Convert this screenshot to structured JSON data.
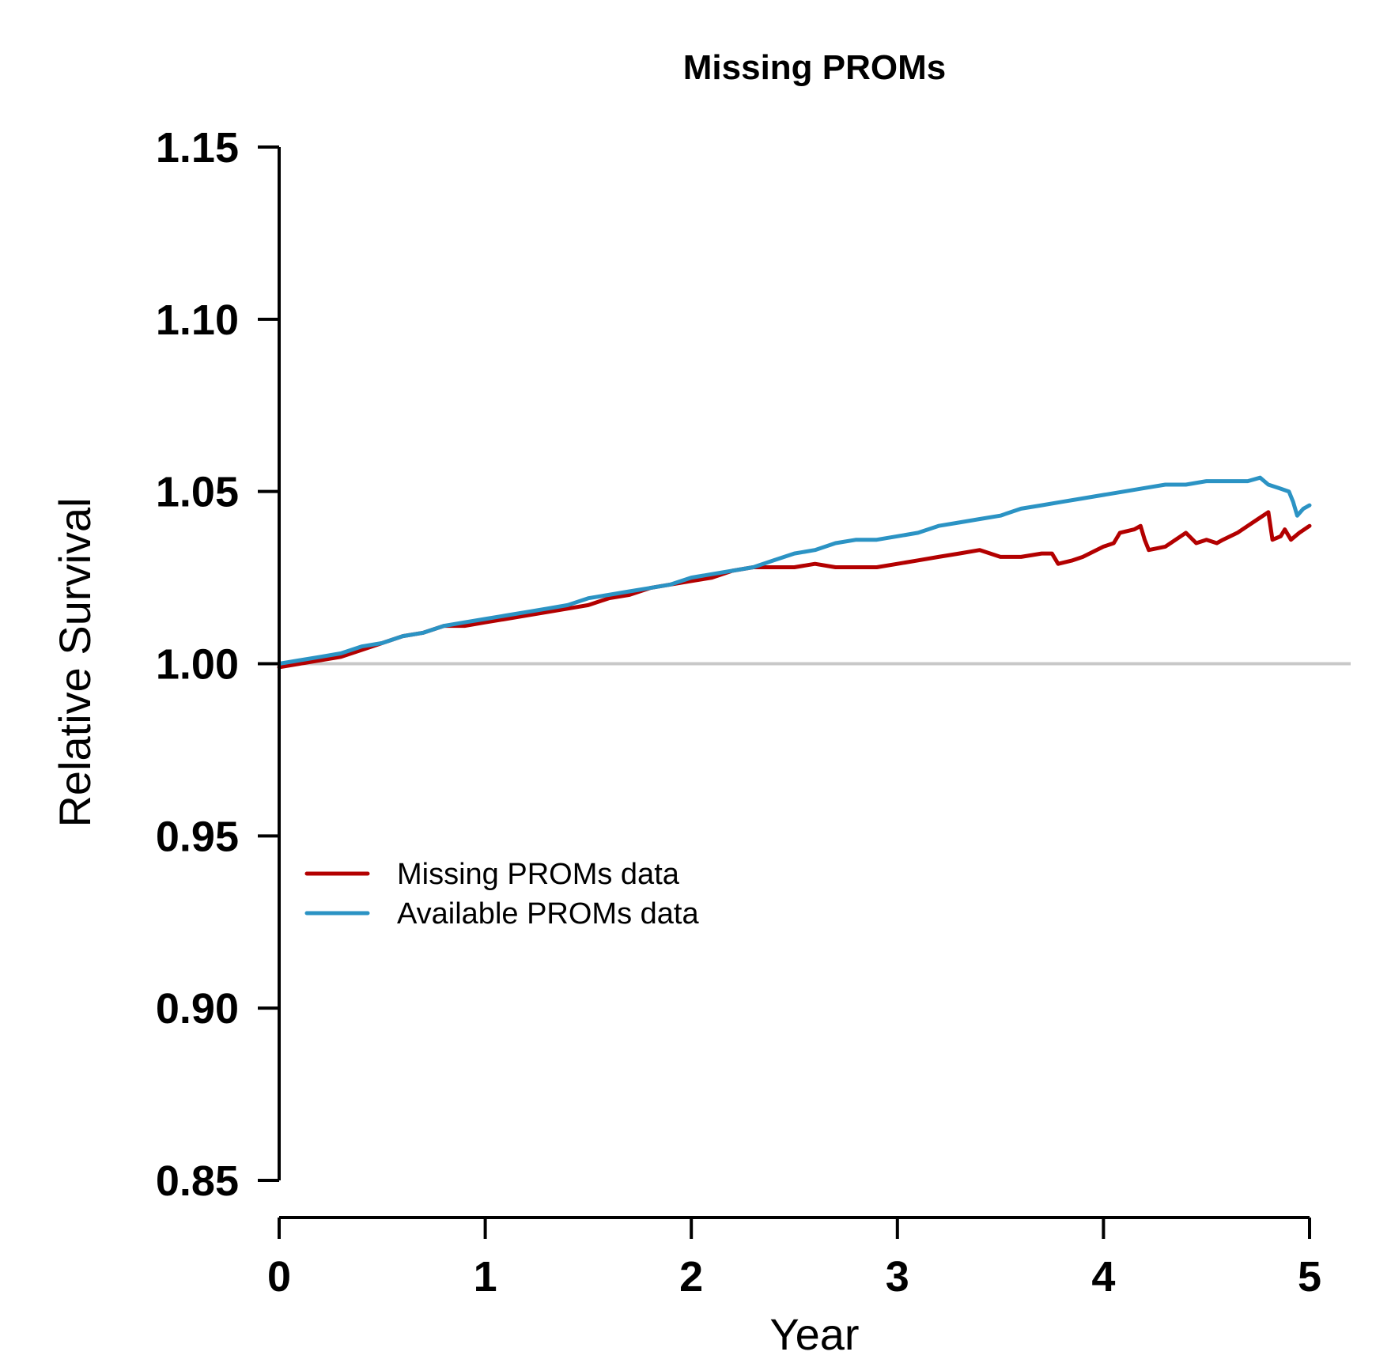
{
  "chart_data": {
    "type": "line",
    "title": "Missing PROMs",
    "xlabel": "Year",
    "ylabel": "Relative Survival",
    "xlim": [
      0,
      5
    ],
    "ylim": [
      0.85,
      1.15
    ],
    "xticks": [
      "0",
      "1",
      "2",
      "3",
      "4",
      "5"
    ],
    "xtick_values": [
      0,
      1,
      2,
      3,
      4,
      5
    ],
    "yticks": [
      "0.85",
      "0.90",
      "0.95",
      "1.00",
      "1.05",
      "1.10",
      "1.15"
    ],
    "ytick_values": [
      0.85,
      0.9,
      0.95,
      1.0,
      1.05,
      1.1,
      1.15
    ],
    "reference_line": {
      "y": 1.0,
      "color": "#c8c8c8"
    },
    "legend_position": "center-left",
    "series": [
      {
        "name": "Missing PROMs data",
        "color": "#b30000",
        "points": [
          [
            0,
            0.999
          ],
          [
            0.1,
            1.0
          ],
          [
            0.2,
            1.001
          ],
          [
            0.3,
            1.002
          ],
          [
            0.4,
            1.004
          ],
          [
            0.5,
            1.006
          ],
          [
            0.6,
            1.008
          ],
          [
            0.7,
            1.009
          ],
          [
            0.8,
            1.011
          ],
          [
            0.9,
            1.011
          ],
          [
            1.0,
            1.012
          ],
          [
            1.1,
            1.013
          ],
          [
            1.2,
            1.014
          ],
          [
            1.3,
            1.015
          ],
          [
            1.4,
            1.016
          ],
          [
            1.5,
            1.017
          ],
          [
            1.6,
            1.019
          ],
          [
            1.7,
            1.02
          ],
          [
            1.8,
            1.022
          ],
          [
            1.9,
            1.023
          ],
          [
            2.0,
            1.024
          ],
          [
            2.1,
            1.025
          ],
          [
            2.2,
            1.027
          ],
          [
            2.3,
            1.028
          ],
          [
            2.4,
            1.028
          ],
          [
            2.5,
            1.028
          ],
          [
            2.6,
            1.029
          ],
          [
            2.7,
            1.028
          ],
          [
            2.8,
            1.028
          ],
          [
            2.9,
            1.028
          ],
          [
            3.0,
            1.029
          ],
          [
            3.1,
            1.03
          ],
          [
            3.2,
            1.031
          ],
          [
            3.3,
            1.032
          ],
          [
            3.4,
            1.033
          ],
          [
            3.5,
            1.031
          ],
          [
            3.6,
            1.031
          ],
          [
            3.7,
            1.032
          ],
          [
            3.75,
            1.032
          ],
          [
            3.78,
            1.029
          ],
          [
            3.85,
            1.03
          ],
          [
            3.9,
            1.031
          ],
          [
            4.0,
            1.034
          ],
          [
            4.05,
            1.035
          ],
          [
            4.08,
            1.038
          ],
          [
            4.15,
            1.039
          ],
          [
            4.18,
            1.04
          ],
          [
            4.2,
            1.036
          ],
          [
            4.22,
            1.033
          ],
          [
            4.3,
            1.034
          ],
          [
            4.35,
            1.036
          ],
          [
            4.4,
            1.038
          ],
          [
            4.45,
            1.035
          ],
          [
            4.5,
            1.036
          ],
          [
            4.55,
            1.035
          ],
          [
            4.58,
            1.036
          ],
          [
            4.65,
            1.038
          ],
          [
            4.7,
            1.04
          ],
          [
            4.75,
            1.042
          ],
          [
            4.8,
            1.044
          ],
          [
            4.82,
            1.036
          ],
          [
            4.86,
            1.037
          ],
          [
            4.88,
            1.039
          ],
          [
            4.91,
            1.036
          ],
          [
            4.95,
            1.038
          ],
          [
            5.0,
            1.04
          ]
        ]
      },
      {
        "name": "Available PROMs data",
        "color": "#2b93c4",
        "points": [
          [
            0,
            1.0
          ],
          [
            0.1,
            1.001
          ],
          [
            0.2,
            1.002
          ],
          [
            0.3,
            1.003
          ],
          [
            0.4,
            1.005
          ],
          [
            0.5,
            1.006
          ],
          [
            0.6,
            1.008
          ],
          [
            0.7,
            1.009
          ],
          [
            0.8,
            1.011
          ],
          [
            0.9,
            1.012
          ],
          [
            1.0,
            1.013
          ],
          [
            1.1,
            1.014
          ],
          [
            1.2,
            1.015
          ],
          [
            1.3,
            1.016
          ],
          [
            1.4,
            1.017
          ],
          [
            1.5,
            1.019
          ],
          [
            1.6,
            1.02
          ],
          [
            1.7,
            1.021
          ],
          [
            1.8,
            1.022
          ],
          [
            1.9,
            1.023
          ],
          [
            2.0,
            1.025
          ],
          [
            2.1,
            1.026
          ],
          [
            2.2,
            1.027
          ],
          [
            2.3,
            1.028
          ],
          [
            2.4,
            1.03
          ],
          [
            2.5,
            1.032
          ],
          [
            2.6,
            1.033
          ],
          [
            2.7,
            1.035
          ],
          [
            2.8,
            1.036
          ],
          [
            2.9,
            1.036
          ],
          [
            3.0,
            1.037
          ],
          [
            3.1,
            1.038
          ],
          [
            3.2,
            1.04
          ],
          [
            3.3,
            1.041
          ],
          [
            3.4,
            1.042
          ],
          [
            3.5,
            1.043
          ],
          [
            3.6,
            1.045
          ],
          [
            3.7,
            1.046
          ],
          [
            3.8,
            1.047
          ],
          [
            3.9,
            1.048
          ],
          [
            4.0,
            1.049
          ],
          [
            4.1,
            1.05
          ],
          [
            4.2,
            1.051
          ],
          [
            4.3,
            1.052
          ],
          [
            4.4,
            1.052
          ],
          [
            4.5,
            1.053
          ],
          [
            4.6,
            1.053
          ],
          [
            4.7,
            1.053
          ],
          [
            4.76,
            1.054
          ],
          [
            4.8,
            1.052
          ],
          [
            4.85,
            1.051
          ],
          [
            4.9,
            1.05
          ],
          [
            4.92,
            1.047
          ],
          [
            4.94,
            1.043
          ],
          [
            4.97,
            1.045
          ],
          [
            5.0,
            1.046
          ]
        ]
      }
    ]
  }
}
